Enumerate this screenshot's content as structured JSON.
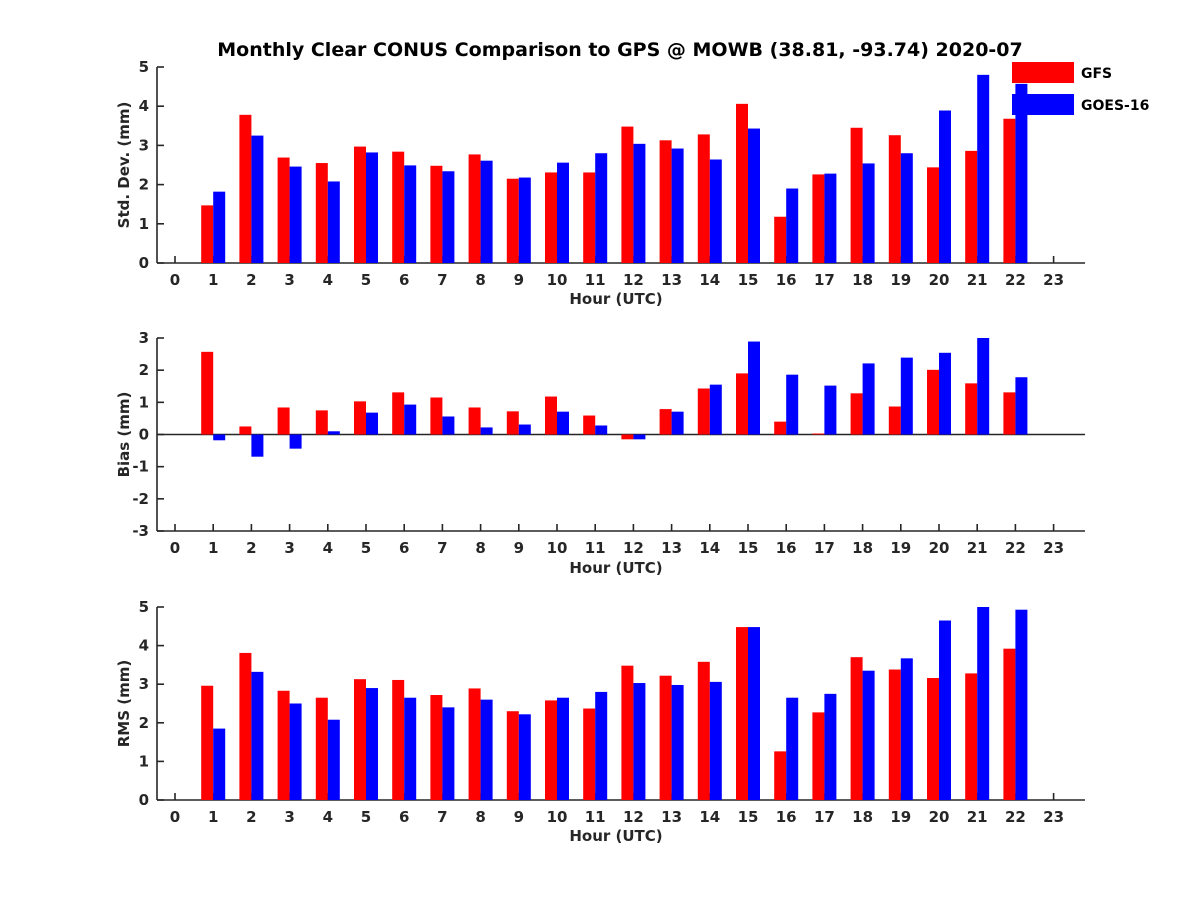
{
  "title": "Monthly Clear CONUS Comparison to GPS @ MOWB (38.81, -93.74) 2020-07",
  "legend": {
    "placement": "top-right",
    "entries": [
      {
        "name": "GFS",
        "color": "#ff0000"
      },
      {
        "name": "GOES-16",
        "color": "#0000ff"
      }
    ]
  },
  "chart_data": [
    {
      "type": "bar",
      "xlabel": "Hour (UTC)",
      "ylabel": "Std. Dev. (mm)",
      "ylim": [
        0,
        5
      ],
      "yticks": [
        0,
        1,
        2,
        3,
        4,
        5
      ],
      "x": [
        0,
        1,
        2,
        3,
        4,
        5,
        6,
        7,
        8,
        9,
        10,
        11,
        12,
        13,
        14,
        15,
        16,
        17,
        18,
        19,
        20,
        21,
        22,
        23
      ],
      "series": [
        {
          "name": "GFS",
          "color": "#ff0000",
          "values": [
            null,
            1.47,
            3.78,
            2.69,
            2.55,
            2.97,
            2.84,
            2.48,
            2.77,
            2.15,
            2.31,
            2.31,
            3.48,
            3.13,
            3.28,
            4.06,
            1.18,
            2.26,
            3.45,
            3.26,
            2.44,
            2.86,
            3.68,
            null
          ]
        },
        {
          "name": "GOES-16",
          "color": "#0000ff",
          "values": [
            null,
            1.82,
            3.25,
            2.46,
            2.08,
            2.82,
            2.49,
            2.34,
            2.61,
            2.18,
            2.56,
            2.8,
            3.04,
            2.92,
            2.64,
            3.43,
            1.9,
            2.28,
            2.54,
            2.8,
            3.89,
            4.8,
            4.57,
            null
          ]
        }
      ]
    },
    {
      "type": "bar",
      "xlabel": "Hour (UTC)",
      "ylabel": "Bias (mm)",
      "ylim": [
        -3,
        3
      ],
      "yticks": [
        -3,
        -2,
        -1,
        0,
        1,
        2,
        3
      ],
      "x": [
        0,
        1,
        2,
        3,
        4,
        5,
        6,
        7,
        8,
        9,
        10,
        11,
        12,
        13,
        14,
        15,
        16,
        17,
        18,
        19,
        20,
        21,
        22,
        23
      ],
      "series": [
        {
          "name": "GFS",
          "color": "#ff0000",
          "values": [
            null,
            2.57,
            0.25,
            0.84,
            0.75,
            1.03,
            1.31,
            1.15,
            0.84,
            0.72,
            1.18,
            0.59,
            -0.15,
            0.79,
            1.43,
            1.9,
            0.4,
            0.03,
            1.28,
            0.87,
            2.01,
            1.59,
            1.31,
            null
          ]
        },
        {
          "name": "GOES-16",
          "color": "#0000ff",
          "values": [
            null,
            -0.18,
            -0.69,
            -0.44,
            0.1,
            0.68,
            0.93,
            0.56,
            0.22,
            0.31,
            0.71,
            0.28,
            -0.15,
            0.71,
            1.55,
            2.89,
            1.86,
            1.52,
            2.21,
            2.39,
            2.54,
            3.0,
            1.78,
            null
          ]
        }
      ]
    },
    {
      "type": "bar",
      "xlabel": "Hour (UTC)",
      "ylabel": "RMS (mm)",
      "ylim": [
        0,
        5
      ],
      "yticks": [
        0,
        1,
        2,
        3,
        4,
        5
      ],
      "x": [
        0,
        1,
        2,
        3,
        4,
        5,
        6,
        7,
        8,
        9,
        10,
        11,
        12,
        13,
        14,
        15,
        16,
        17,
        18,
        19,
        20,
        21,
        22,
        23
      ],
      "series": [
        {
          "name": "GFS",
          "color": "#ff0000",
          "values": [
            null,
            2.96,
            3.81,
            2.83,
            2.65,
            3.13,
            3.11,
            2.72,
            2.89,
            2.3,
            2.58,
            2.37,
            3.48,
            3.22,
            3.58,
            4.48,
            1.26,
            2.27,
            3.7,
            3.38,
            3.16,
            3.28,
            3.92,
            null
          ]
        },
        {
          "name": "GOES-16",
          "color": "#0000ff",
          "values": [
            null,
            1.85,
            3.32,
            2.5,
            2.08,
            2.9,
            2.65,
            2.4,
            2.6,
            2.22,
            2.65,
            2.8,
            3.03,
            2.98,
            3.06,
            4.48,
            2.65,
            2.75,
            3.35,
            3.67,
            4.65,
            5.0,
            4.93,
            null
          ]
        }
      ]
    }
  ]
}
